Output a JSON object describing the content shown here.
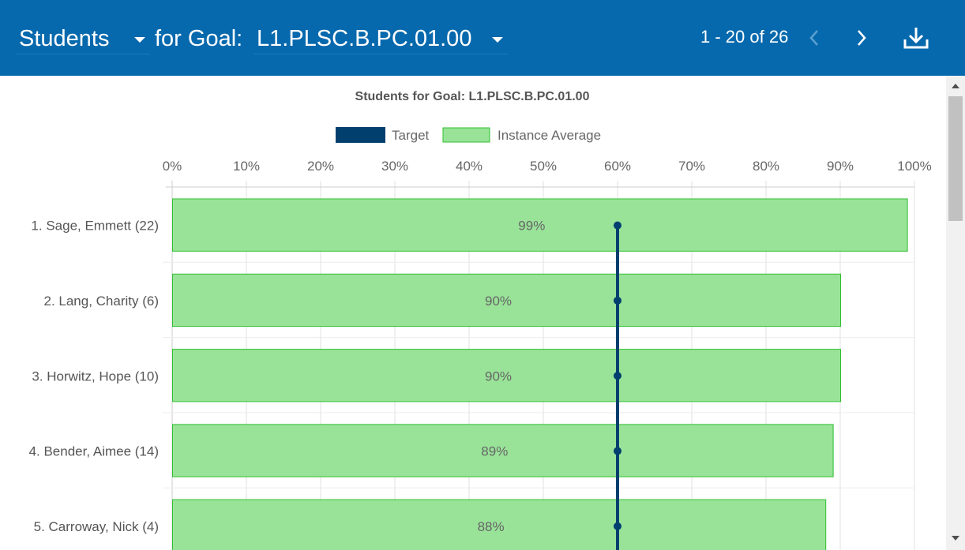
{
  "header": {
    "entity_select": "Students",
    "for_goal_label": "for Goal:",
    "goal_select": "L1.PLSC.B.PC.01.00",
    "pagination": "1 - 20 of 26"
  },
  "colors": {
    "header_bg": "#0769ad",
    "target": "#003f6e",
    "bar_fill": "#99e399",
    "bar_stroke": "#2fbf2f"
  },
  "chart_data": {
    "type": "bar",
    "orientation": "horizontal",
    "title": "Students for Goal: L1.PLSC.B.PC.01.00",
    "legend": [
      "Target",
      "Instance Average"
    ],
    "legend_position": "top",
    "x_ticks": [
      "0%",
      "10%",
      "20%",
      "30%",
      "40%",
      "50%",
      "60%",
      "70%",
      "80%",
      "90%",
      "100%"
    ],
    "xlim": [
      0,
      100
    ],
    "grid": true,
    "categories": [
      "1. Sage, Emmett (22)",
      "2. Lang, Charity (6)",
      "3. Horwitz, Hope (10)",
      "4. Bender, Aimee (14)",
      "5. Carroway, Nick (4)"
    ],
    "values": [
      99,
      90,
      90,
      89,
      88
    ],
    "value_labels": [
      "99%",
      "90%",
      "90%",
      "89%",
      "88%"
    ],
    "target": 60
  }
}
